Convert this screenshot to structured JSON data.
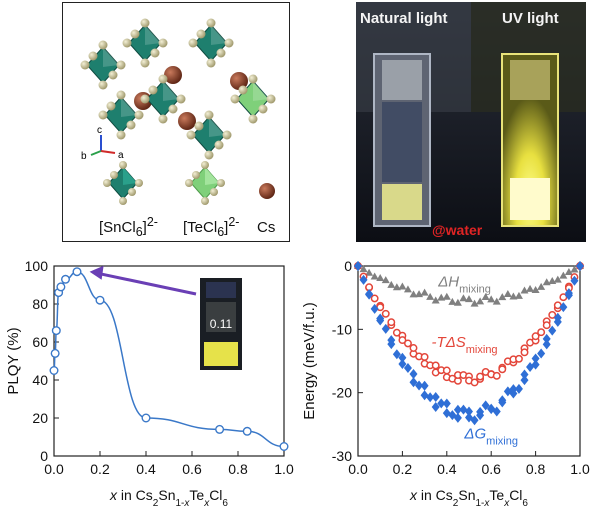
{
  "structure_panel": {
    "legend": [
      {
        "name": "sncl6",
        "label_main": "[SnCl",
        "label_sub": "6",
        "label_end": "]",
        "label_sup": "2-"
      },
      {
        "name": "tecl6",
        "label_main": "[TeCl",
        "label_sub": "6",
        "label_end": "]",
        "label_sup": "2-"
      },
      {
        "name": "cs",
        "label_main": "Cs"
      }
    ],
    "axes_labels": {
      "c": "c",
      "a": "a",
      "b": "b"
    },
    "colors": {
      "sncl6": "#1e7f6e",
      "tecl6": "#7fd07a",
      "cs": "#7a3420",
      "cl": "#c9c29a"
    }
  },
  "photo_panel": {
    "natural_label": "Natural light",
    "uv_label": "UV light",
    "water_label": "@water",
    "colors": {
      "background": "#141820",
      "emission": "#f3f04a"
    }
  },
  "chart_data": [
    {
      "type": "line",
      "name": "plqy",
      "xlabel_italic": "x",
      "xlabel_parts": [
        " in Cs",
        {
          "sub": "2"
        },
        "Sn",
        {
          "sub": "1-"
        },
        {
          "sub_italic": "x"
        },
        "Te",
        {
          "sub_italic": "x"
        },
        "Cl",
        {
          "sub": "6"
        }
      ],
      "ylabel": "PLQY (%)",
      "xlim": [
        0,
        1.0
      ],
      "ylim": [
        0,
        100
      ],
      "xticks": [
        "0.0",
        "0.2",
        "0.4",
        "0.6",
        "0.8",
        "1.0"
      ],
      "yticks": [
        "0",
        "20",
        "40",
        "60",
        "80",
        "100"
      ],
      "series": [
        {
          "color": "#3a78c8",
          "x": [
            0.0,
            0.005,
            0.01,
            0.02,
            0.03,
            0.05,
            0.1,
            0.2,
            0.4,
            0.72,
            0.84,
            1.0
          ],
          "y": [
            45,
            54,
            66,
            86,
            89,
            93,
            97,
            82,
            20,
            14,
            13,
            5
          ]
        }
      ],
      "inset": {
        "label": "0.11",
        "arrow_color": "#6a3fb5"
      }
    },
    {
      "type": "scatter",
      "name": "energy",
      "xlabel_italic": "x",
      "xlabel_parts": [
        " in Cs",
        {
          "sub": "2"
        },
        "Sn",
        {
          "sub": "1-"
        },
        {
          "sub_italic": "x"
        },
        "Te",
        {
          "sub_italic": "x"
        },
        "Cl",
        {
          "sub": "6"
        }
      ],
      "ylabel": "Energy (meV/f.u.)",
      "xlim": [
        0,
        1.0
      ],
      "ylim": [
        -30,
        0
      ],
      "xticks": [
        "0.0",
        "0.2",
        "0.4",
        "0.6",
        "0.8",
        "1.0"
      ],
      "yticks": [
        "0",
        "-10",
        "-20",
        "-30"
      ],
      "series": [
        {
          "name_main": "ΔH",
          "name_sub": "mixing",
          "marker": "triangle",
          "color": "#808080",
          "min": -5.5
        },
        {
          "name_main": "-TΔS",
          "name_sub": "mixing",
          "marker": "open-circle",
          "color": "#e3463a",
          "min": -17.8
        },
        {
          "name_main": "ΔG",
          "name_sub": "mixing",
          "marker": "diamond",
          "color": "#2f6fd6",
          "min": -23.5
        }
      ]
    }
  ]
}
